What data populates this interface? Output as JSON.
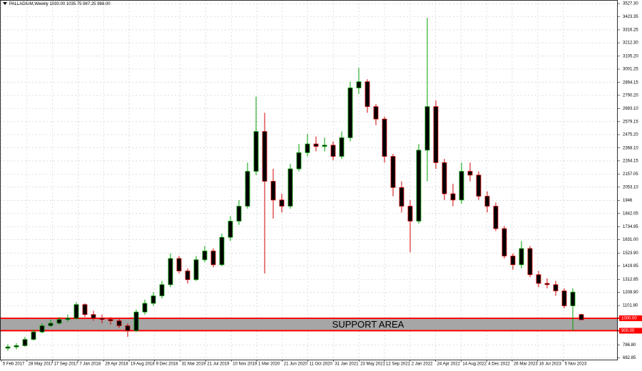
{
  "chart_data": {
    "type": "candlestick",
    "title": "PALLADIUM,Weekly  1030.00 1035.75 987.25 988.00",
    "up_color": "#00a000",
    "down_color": "#d00000",
    "body_color": "#000000",
    "grid": true,
    "ylim": [
      668,
      3556
    ],
    "yticks": [
      {
        "value": 3527.3,
        "label": "3527.30"
      },
      {
        "value": 3423.35,
        "label": "3423.35"
      },
      {
        "value": 3316.25,
        "label": "3316.25"
      },
      {
        "value": 3212.3,
        "label": "3212.30"
      },
      {
        "value": 3105.2,
        "label": "3105.20"
      },
      {
        "value": 3001.25,
        "label": "3001.25"
      },
      {
        "value": 2894.15,
        "label": "2894.15"
      },
      {
        "value": 2790.2,
        "label": "2790.20"
      },
      {
        "value": 2683.1,
        "label": "2683.10"
      },
      {
        "value": 2579.15,
        "label": "2579.15"
      },
      {
        "value": 2475.2,
        "label": "2475.20"
      },
      {
        "value": 2368.1,
        "label": "2368.10"
      },
      {
        "value": 2264.15,
        "label": "2264.15"
      },
      {
        "value": 2157.05,
        "label": "2157.05"
      },
      {
        "value": 2053.1,
        "label": "2053.10"
      },
      1946,
      {
        "value": 1842.05,
        "label": "1842.05"
      },
      {
        "value": 1734.95,
        "label": "1734.95"
      },
      {
        "value": 1631,
        "label": "1631.00"
      },
      {
        "value": 1523.9,
        "label": "1523.90"
      },
      {
        "value": 1419.95,
        "label": "1419.95"
      },
      {
        "value": 1312.85,
        "label": "1312.85"
      },
      {
        "value": 1208.9,
        "label": "1208.90"
      },
      {
        "value": 1101.8,
        "label": "1101.80"
      },
      {
        "value": 786.8,
        "label": "786.80"
      },
      {
        "value": 682.85,
        "label": "682.85"
      }
    ],
    "x_labels": [
      "5 Feb 2017",
      "28 May 2017",
      "17 Sep 2017",
      "7 Jan 2018",
      "29 Apr 2018",
      "19 Aug 2018",
      "9 Dec 2018",
      "31 Mar 2019",
      "21 Jul 2019",
      "10 Nov 2019",
      "1 Mar 2020",
      "21 Jun 2020",
      "11 Oct 2020",
      "31 Jan 2021",
      "23 May 2021",
      "12 Sep 2021",
      "2 Jan 2022",
      "24 Apr 2022",
      "14 Aug 2022",
      "4 Dec 2022",
      "26 Mar 2023",
      "16 Jul 2023",
      "5 Nov 2023"
    ],
    "open": [
      760,
      770,
      780,
      830,
      890,
      940,
      960,
      990,
      1000,
      1110,
      1030,
      1000,
      990,
      980,
      940,
      900,
      1050,
      1120,
      1180,
      1270,
      1480,
      1380,
      1310,
      1470,
      1540,
      1430,
      1650,
      1780,
      1900,
      2180,
      2500,
      2100,
      1950,
      1900,
      2200,
      2330,
      2400,
      2380,
      2390,
      2300,
      2450,
      2850,
      2900,
      2700,
      2600,
      2300,
      2050,
      1900,
      1780,
      2350,
      2700,
      2250,
      2000,
      1950,
      2180,
      2150,
      1980,
      1900,
      1720,
      1500,
      1430,
      1560,
      1350,
      1280,
      1270,
      1220,
      1100,
      1030
    ],
    "high": [
      790,
      800,
      850,
      910,
      960,
      990,
      1010,
      1030,
      1130,
      1120,
      1060,
      1030,
      1010,
      1000,
      960,
      1070,
      1150,
      1210,
      1300,
      1520,
      1500,
      1400,
      1500,
      1580,
      1560,
      1680,
      1820,
      1950,
      2250,
      2780,
      2650,
      2200,
      2000,
      2240,
      2400,
      2480,
      2460,
      2450,
      2420,
      2500,
      2900,
      3013,
      2920,
      2720,
      2620,
      2320,
      2100,
      1950,
      2400,
      3413,
      2750,
      2280,
      2080,
      2250,
      2250,
      2180,
      2020,
      1930,
      1740,
      1520,
      1620,
      1580,
      1380,
      1320,
      1300,
      1240,
      1240,
      1035.75
    ],
    "low": [
      740,
      750,
      770,
      820,
      880,
      930,
      950,
      970,
      990,
      1010,
      980,
      960,
      950,
      920,
      850,
      890,
      1030,
      1100,
      1160,
      1250,
      1360,
      1280,
      1300,
      1450,
      1410,
      1420,
      1620,
      1750,
      1880,
      2150,
      1360,
      1800,
      1850,
      1880,
      2180,
      2300,
      2340,
      2340,
      2270,
      2280,
      2420,
      2800,
      2650,
      2550,
      2250,
      1980,
      1850,
      1530,
      1760,
      2100,
      2200,
      1950,
      1900,
      1920,
      2100,
      1950,
      1850,
      1700,
      1480,
      1390,
      1400,
      1330,
      1250,
      1240,
      1180,
      1080,
      900,
      987.25
    ],
    "close": [
      770,
      780,
      830,
      890,
      940,
      960,
      990,
      1000,
      1110,
      1030,
      1000,
      990,
      980,
      940,
      900,
      1050,
      1120,
      1180,
      1270,
      1480,
      1380,
      1310,
      1470,
      1540,
      1430,
      1650,
      1780,
      1900,
      2180,
      2500,
      2100,
      1950,
      1900,
      2200,
      2330,
      2400,
      2380,
      2390,
      2300,
      2450,
      2850,
      2900,
      2700,
      2600,
      2300,
      2050,
      1900,
      1780,
      2350,
      2700,
      2250,
      2000,
      1950,
      2180,
      2150,
      1980,
      1900,
      1720,
      1500,
      1430,
      1560,
      1350,
      1280,
      1270,
      1220,
      1100,
      1210,
      988
    ],
    "zone": {
      "label": "SUPPORT AREA",
      "high": {
        "value": 1000,
        "label": "1000.00"
      },
      "low": {
        "value": 900,
        "label": "900.00"
      },
      "fill": "#a6a6a6",
      "line_color": "#ff0000"
    }
  }
}
